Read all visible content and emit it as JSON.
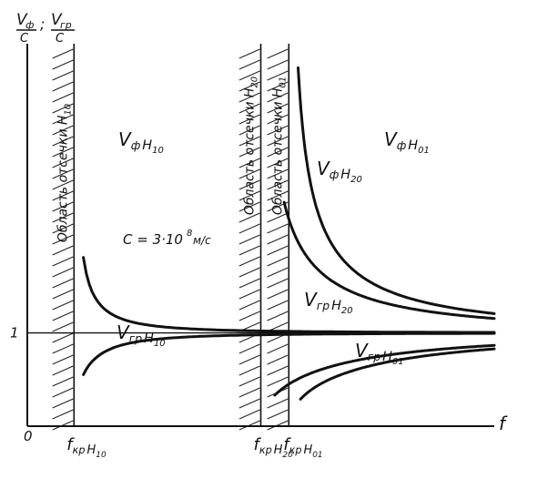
{
  "chart_data": {
    "type": "line",
    "title": "",
    "y_axis_label": {
      "v1": "V",
      "v1_sub": "ф",
      "v2": "V",
      "v2_sub": "гр",
      "den": "C",
      "sep": ";"
    },
    "x_axis_label": "f",
    "origin_label": "0",
    "y_tick_label": "1",
    "speed_label": {
      "main": "C = 3·10",
      "exp": "8",
      "unit": "м/с"
    },
    "xlim": [
      0,
      10
    ],
    "ylim": [
      0,
      4.1
    ],
    "reference_line_y": 1,
    "cutoffs": [
      {
        "x": 1,
        "label": "f",
        "sub1": "кр",
        "sub2": "H",
        "sub3": "10"
      },
      {
        "x": 5,
        "label": "f",
        "sub1": "кр",
        "sub2": "H",
        "sub3": "20"
      },
      {
        "x": 5.6,
        "label": "f",
        "sub1": "кр",
        "sub2": "H",
        "sub3": "01"
      }
    ],
    "regions": [
      {
        "x_from": 0.5,
        "x_to": 1,
        "label_main": "Область отсечки",
        "label_mode": "H",
        "label_sub": "10"
      },
      {
        "x_from": 4.5,
        "x_to": 5,
        "label_main": "Область отсечки",
        "label_mode": "H",
        "label_sub": "20"
      },
      {
        "x_from": 5.1,
        "x_to": 5.6,
        "label_main": "Область отсечки",
        "label_mode": "H",
        "label_sub": "01"
      }
    ],
    "series": [
      {
        "id": "vph_h10",
        "kind": "phase",
        "cutoff": 1,
        "x_from": 1.2,
        "x_to": 10,
        "label": "V",
        "label_sub1": "ф",
        "label_sub2": "H",
        "label_sub3": "10"
      },
      {
        "id": "vgr_h10",
        "kind": "group",
        "cutoff": 1,
        "x_from": 1.2,
        "x_to": 10,
        "label": "V",
        "label_sub1": "гр",
        "label_sub2": "H",
        "label_sub3": "10"
      },
      {
        "id": "vph_h20",
        "kind": "phase",
        "cutoff": 5,
        "x_from": 5.5,
        "x_to": 10,
        "label": "V",
        "label_sub1": "ф",
        "label_sub2": "H",
        "label_sub3": "20"
      },
      {
        "id": "vgr_h20",
        "kind": "group",
        "cutoff": 5,
        "x_from": 5.3,
        "x_to": 10,
        "label": "V",
        "label_sub1": "гр",
        "label_sub2": "H",
        "label_sub3": "20"
      },
      {
        "id": "vph_h01",
        "kind": "phase",
        "cutoff": 5.6,
        "x_from": 5.8,
        "x_to": 10,
        "label": "V",
        "label_sub1": "ф",
        "label_sub2": "H",
        "label_sub3": "01"
      },
      {
        "id": "vgr_h01",
        "kind": "group",
        "cutoff": 5.6,
        "x_from": 5.85,
        "x_to": 10,
        "label": "V",
        "label_sub1": "гр",
        "label_sub2": "H",
        "label_sub3": "01"
      }
    ]
  }
}
